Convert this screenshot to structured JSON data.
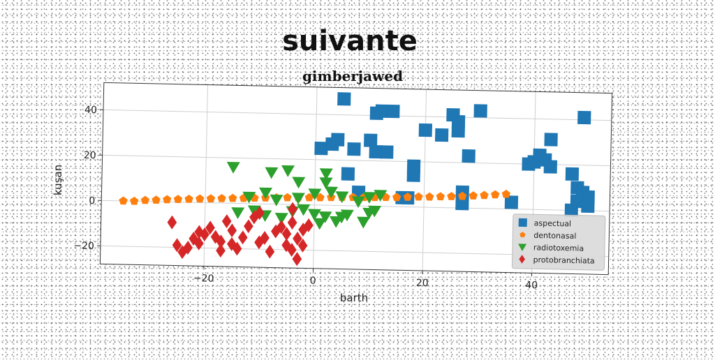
{
  "chart_data": {
    "type": "scatter",
    "suptitle": "suivante",
    "title": "gimberjawed",
    "xlabel": "barth",
    "ylabel": "kuşan",
    "xlim": [
      -39,
      54
    ],
    "ylim": [
      -28,
      52
    ],
    "xticks": [
      -20,
      0,
      20,
      40
    ],
    "xtick_labels": [
      "−20",
      "0",
      "20",
      "40"
    ],
    "yticks": [
      -20,
      0,
      20,
      40
    ],
    "ytick_labels": [
      "−20",
      "0",
      "20",
      "40"
    ],
    "grid": true,
    "legend_position": "lower-right",
    "series": [
      {
        "name": "aspectual",
        "color": "#1f77b4",
        "marker": "square",
        "points": [
          [
            5,
            47
          ],
          [
            11,
            41
          ],
          [
            12,
            42
          ],
          [
            14,
            42
          ],
          [
            25,
            41
          ],
          [
            26,
            38
          ],
          [
            30,
            43
          ],
          [
            20,
            34
          ],
          [
            23,
            32
          ],
          [
            26,
            34
          ],
          [
            1,
            25
          ],
          [
            3,
            27
          ],
          [
            4,
            29
          ],
          [
            7,
            25
          ],
          [
            10,
            29
          ],
          [
            11,
            24
          ],
          [
            13,
            24
          ],
          [
            18,
            18
          ],
          [
            18,
            14
          ],
          [
            28,
            23
          ],
          [
            39,
            20
          ],
          [
            40,
            21
          ],
          [
            41,
            24
          ],
          [
            42,
            22
          ],
          [
            43,
            19
          ],
          [
            43,
            31
          ],
          [
            49,
            41
          ],
          [
            47,
            16
          ],
          [
            48,
            10
          ],
          [
            49,
            8
          ],
          [
            48,
            4
          ],
          [
            50,
            6
          ],
          [
            50,
            2
          ],
          [
            47,
            0
          ],
          [
            6,
            14
          ],
          [
            8,
            6
          ],
          [
            16,
            4
          ],
          [
            17,
            4
          ],
          [
            27,
            7
          ],
          [
            27,
            2
          ],
          [
            36,
            3
          ]
        ]
      },
      {
        "name": "dentonasal",
        "color": "#ff7f0e",
        "marker": "pentagon",
        "points": [
          [
            -35,
            0
          ],
          [
            -33,
            0
          ],
          [
            -31,
            0.5
          ],
          [
            -29,
            0.7
          ],
          [
            -27,
            1
          ],
          [
            -25,
            1.2
          ],
          [
            -23,
            1.4
          ],
          [
            -21,
            1.6
          ],
          [
            -19,
            1.8
          ],
          [
            -17,
            2
          ],
          [
            -15,
            2.2
          ],
          [
            -13,
            2.3
          ],
          [
            -11,
            2.5
          ],
          [
            -9,
            2.7
          ],
          [
            -7,
            2.8
          ],
          [
            -5,
            3
          ],
          [
            -3,
            3.1
          ],
          [
            -1,
            3.2
          ],
          [
            1,
            3.3
          ],
          [
            3,
            3.5
          ],
          [
            5,
            3.6
          ],
          [
            7,
            3.7
          ],
          [
            9,
            3.8
          ],
          [
            11,
            3.9
          ],
          [
            13,
            4
          ],
          [
            15,
            4.1
          ],
          [
            17,
            4.3
          ],
          [
            19,
            4.5
          ],
          [
            21,
            4.6
          ],
          [
            23,
            4.8
          ],
          [
            25,
            5
          ],
          [
            27,
            5.2
          ],
          [
            29,
            5.5
          ],
          [
            31,
            5.8
          ],
          [
            33,
            6.2
          ],
          [
            35,
            6.5
          ]
        ]
      },
      {
        "name": "radiotoxemia",
        "color": "#2ca02c",
        "marker": "triangle-down",
        "points": [
          [
            -15,
            16
          ],
          [
            -8,
            14
          ],
          [
            -5,
            15
          ],
          [
            -3,
            10
          ],
          [
            2,
            14
          ],
          [
            -9,
            5
          ],
          [
            -12,
            3
          ],
          [
            -7,
            2
          ],
          [
            -3,
            3
          ],
          [
            0,
            5
          ],
          [
            2,
            10
          ],
          [
            3,
            6
          ],
          [
            5,
            4
          ],
          [
            8,
            2
          ],
          [
            10,
            4
          ],
          [
            12,
            5
          ],
          [
            -14,
            -4
          ],
          [
            -11,
            -3
          ],
          [
            -9,
            -5
          ],
          [
            -6,
            -6
          ],
          [
            -4,
            -3
          ],
          [
            -2,
            -2
          ],
          [
            0,
            -4
          ],
          [
            2,
            -5
          ],
          [
            5,
            -5
          ],
          [
            6,
            -4
          ],
          [
            9,
            -7
          ],
          [
            10,
            -3
          ],
          [
            11,
            -2
          ],
          [
            1,
            -8
          ],
          [
            4,
            -7
          ]
        ]
      },
      {
        "name": "protobranchiata",
        "color": "#d62728",
        "marker": "diamond",
        "points": [
          [
            -26,
            -9
          ],
          [
            -25,
            -19
          ],
          [
            -24,
            -22
          ],
          [
            -23,
            -20
          ],
          [
            -22,
            -16
          ],
          [
            -21,
            -13
          ],
          [
            -21,
            -18
          ],
          [
            -20,
            -14
          ],
          [
            -19,
            -11
          ],
          [
            -18,
            -15
          ],
          [
            -17,
            -21
          ],
          [
            -17,
            -17
          ],
          [
            -16,
            -8
          ],
          [
            -15,
            -12
          ],
          [
            -15,
            -18
          ],
          [
            -14,
            -20
          ],
          [
            -13,
            -15
          ],
          [
            -12,
            -10
          ],
          [
            -11,
            -6
          ],
          [
            -10,
            -4
          ],
          [
            -10,
            -17
          ],
          [
            -9,
            -15
          ],
          [
            -8,
            -21
          ],
          [
            -7,
            -12
          ],
          [
            -6,
            -10
          ],
          [
            -5,
            -18
          ],
          [
            -5,
            -13
          ],
          [
            -4,
            -8
          ],
          [
            -4,
            -20
          ],
          [
            -3,
            -15
          ],
          [
            -3,
            -24
          ],
          [
            -2,
            -11
          ],
          [
            -1,
            -9
          ],
          [
            -4,
            -2
          ],
          [
            -2,
            -18
          ]
        ]
      }
    ]
  }
}
